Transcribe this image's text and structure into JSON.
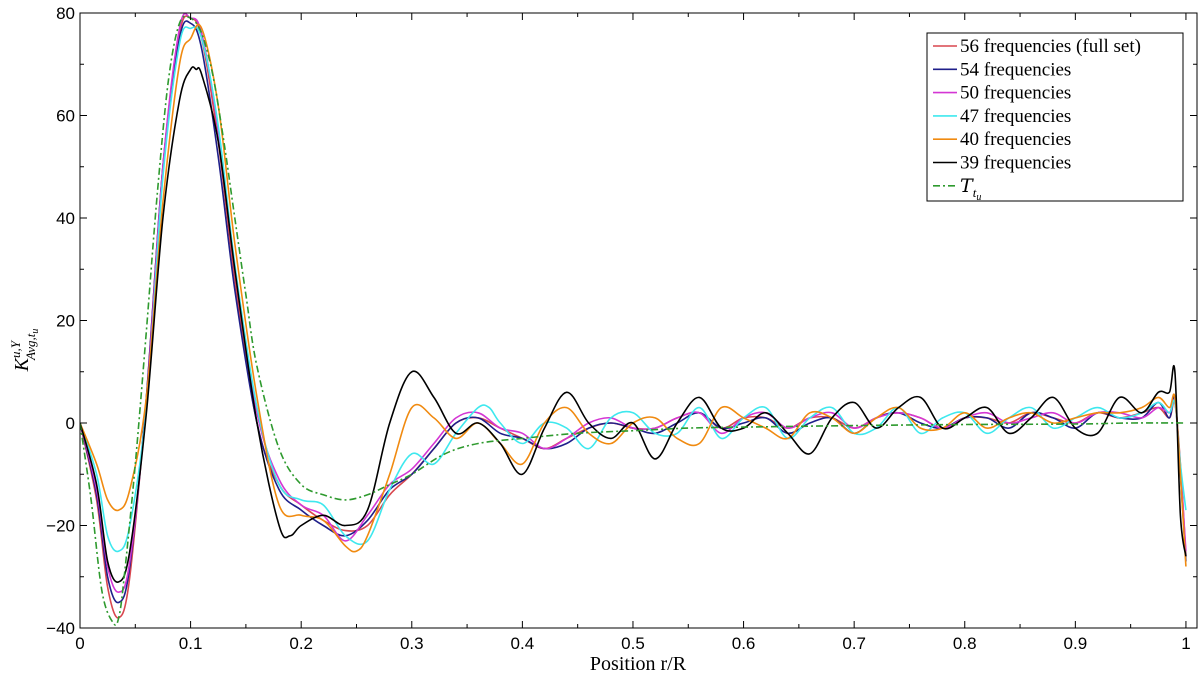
{
  "chart_data": {
    "type": "line",
    "title": "",
    "xlabel": "Position r/R",
    "ylabel_base": "K",
    "ylabel_sup": "u,Y",
    "ylabel_sub": "Avg,t",
    "ylabel_subsub": "u",
    "xlim": [
      0,
      1.01
    ],
    "ylim": [
      -40,
      80
    ],
    "xticks": [
      0,
      0.1,
      0.2,
      0.3,
      0.4,
      0.5,
      0.6,
      0.7,
      0.8,
      0.9,
      1
    ],
    "xtick_labels": [
      "0",
      "0.1",
      "0.2",
      "0.3",
      "0.4",
      "0.5",
      "0.6",
      "0.7",
      "0.8",
      "0.9",
      "1"
    ],
    "yticks": [
      -40,
      -20,
      0,
      20,
      40,
      60,
      80
    ],
    "ytick_labels": [
      "−40",
      "−20",
      "0",
      "20",
      "40",
      "60",
      "80"
    ],
    "grid": false,
    "legend_position": "top-right",
    "series": [
      {
        "name": "56 frequencies (full set)",
        "color": "#d9474f",
        "style": "solid",
        "x": [
          0,
          0.015,
          0.025,
          0.035,
          0.045,
          0.06,
          0.075,
          0.09,
          0.1,
          0.11,
          0.125,
          0.14,
          0.16,
          0.18,
          0.2,
          0.22,
          0.24,
          0.26,
          0.28,
          0.3,
          0.32,
          0.34,
          0.36,
          0.38,
          0.4,
          0.42,
          0.44,
          0.46,
          0.48,
          0.5,
          0.52,
          0.54,
          0.56,
          0.58,
          0.6,
          0.62,
          0.64,
          0.66,
          0.68,
          0.7,
          0.72,
          0.74,
          0.76,
          0.78,
          0.8,
          0.82,
          0.84,
          0.86,
          0.88,
          0.9,
          0.92,
          0.94,
          0.96,
          0.975,
          0.985,
          0.99,
          0.995,
          1.0
        ],
        "y": [
          0,
          -15,
          -32,
          -38,
          -30,
          5,
          50,
          76,
          79,
          75,
          55,
          28,
          0,
          -12,
          -16,
          -19,
          -21,
          -20,
          -14,
          -10,
          -5,
          0,
          1,
          -1,
          -3,
          -5,
          -3,
          -1,
          0,
          -1,
          -1,
          1,
          2,
          -1,
          1,
          1,
          -1,
          1,
          1,
          -1,
          1,
          2,
          1,
          -1,
          1,
          1,
          0,
          2,
          1,
          0,
          2,
          1,
          2,
          3,
          1,
          4,
          -8,
          -26
        ]
      },
      {
        "name": "54 frequencies",
        "color": "#1f1f8a",
        "style": "solid",
        "x": [
          0,
          0.015,
          0.025,
          0.035,
          0.045,
          0.06,
          0.075,
          0.09,
          0.1,
          0.11,
          0.125,
          0.14,
          0.16,
          0.18,
          0.2,
          0.22,
          0.24,
          0.26,
          0.28,
          0.3,
          0.32,
          0.34,
          0.36,
          0.38,
          0.4,
          0.42,
          0.44,
          0.46,
          0.48,
          0.5,
          0.52,
          0.54,
          0.56,
          0.58,
          0.6,
          0.62,
          0.64,
          0.66,
          0.68,
          0.7,
          0.72,
          0.74,
          0.76,
          0.78,
          0.8,
          0.82,
          0.84,
          0.86,
          0.88,
          0.9,
          0.92,
          0.94,
          0.96,
          0.975,
          0.985,
          0.99,
          0.995,
          1.0
        ],
        "y": [
          0,
          -14,
          -30,
          -35,
          -28,
          5,
          50,
          75,
          78,
          73,
          52,
          26,
          0,
          -13,
          -17,
          -20,
          -22,
          -19,
          -13,
          -10,
          -5,
          0,
          1,
          -2,
          -3,
          -5,
          -4,
          -1,
          0,
          -1,
          -2,
          0,
          2,
          -1,
          0,
          1,
          -2,
          0,
          1,
          -2,
          1,
          2,
          0,
          -1,
          1,
          1,
          -1,
          2,
          1,
          -1,
          2,
          1,
          1,
          4,
          1,
          5,
          -10,
          -27
        ]
      },
      {
        "name": "50 frequencies",
        "color": "#d436d4",
        "style": "solid",
        "x": [
          0,
          0.015,
          0.025,
          0.035,
          0.045,
          0.06,
          0.075,
          0.09,
          0.1,
          0.11,
          0.125,
          0.14,
          0.16,
          0.18,
          0.2,
          0.22,
          0.24,
          0.26,
          0.28,
          0.3,
          0.32,
          0.34,
          0.36,
          0.38,
          0.4,
          0.42,
          0.44,
          0.46,
          0.48,
          0.5,
          0.52,
          0.54,
          0.56,
          0.58,
          0.6,
          0.62,
          0.64,
          0.66,
          0.68,
          0.7,
          0.72,
          0.74,
          0.76,
          0.78,
          0.8,
          0.82,
          0.84,
          0.86,
          0.88,
          0.9,
          0.92,
          0.94,
          0.96,
          0.975,
          0.985,
          0.99,
          0.995,
          1.0
        ],
        "y": [
          0,
          -13,
          -28,
          -33,
          -27,
          4,
          50,
          77,
          79,
          76,
          57,
          30,
          2,
          -11,
          -16,
          -18,
          -23,
          -18,
          -12,
          -9,
          -4,
          1,
          2,
          -1,
          -2,
          -5,
          -3,
          0,
          1,
          -1,
          -1,
          1,
          2,
          -2,
          1,
          2,
          -1,
          1,
          2,
          -1,
          1,
          2,
          1,
          -1,
          1,
          2,
          0,
          1,
          2,
          0,
          2,
          2,
          1,
          3,
          2,
          4,
          -9,
          -25
        ]
      },
      {
        "name": "47 frequencies",
        "color": "#3ee8ee",
        "style": "solid",
        "x": [
          0,
          0.015,
          0.025,
          0.035,
          0.045,
          0.06,
          0.075,
          0.09,
          0.1,
          0.11,
          0.125,
          0.14,
          0.16,
          0.18,
          0.2,
          0.22,
          0.24,
          0.26,
          0.28,
          0.3,
          0.32,
          0.34,
          0.36,
          0.37,
          0.38,
          0.4,
          0.42,
          0.44,
          0.46,
          0.48,
          0.5,
          0.52,
          0.54,
          0.56,
          0.58,
          0.6,
          0.62,
          0.64,
          0.66,
          0.68,
          0.7,
          0.72,
          0.74,
          0.76,
          0.78,
          0.8,
          0.82,
          0.84,
          0.86,
          0.88,
          0.9,
          0.92,
          0.94,
          0.96,
          0.975,
          0.985,
          0.99,
          0.995,
          1.0
        ],
        "y": [
          0,
          -10,
          -22,
          -25,
          -20,
          3,
          48,
          74,
          77,
          75,
          58,
          31,
          3,
          -12,
          -15,
          -16,
          -22,
          -23,
          -13,
          -6,
          -8,
          -2,
          3,
          3,
          0,
          -4,
          0,
          -1,
          -5,
          1,
          2,
          -2,
          -2,
          3,
          -3,
          1,
          3,
          -3,
          1,
          3,
          -2,
          -1,
          3,
          -2,
          1,
          2,
          -2,
          1,
          3,
          -1,
          1,
          3,
          1,
          2,
          4,
          2,
          4,
          -8,
          -17
        ]
      },
      {
        "name": "40 frequencies",
        "color": "#f08a10",
        "style": "solid",
        "x": [
          0,
          0.015,
          0.025,
          0.035,
          0.045,
          0.06,
          0.075,
          0.09,
          0.1,
          0.11,
          0.125,
          0.14,
          0.16,
          0.18,
          0.2,
          0.22,
          0.24,
          0.25,
          0.26,
          0.28,
          0.3,
          0.32,
          0.34,
          0.36,
          0.38,
          0.4,
          0.42,
          0.44,
          0.46,
          0.48,
          0.5,
          0.52,
          0.54,
          0.56,
          0.58,
          0.6,
          0.62,
          0.64,
          0.66,
          0.68,
          0.7,
          0.72,
          0.74,
          0.76,
          0.78,
          0.8,
          0.82,
          0.84,
          0.86,
          0.88,
          0.9,
          0.92,
          0.94,
          0.96,
          0.975,
          0.985,
          0.99,
          0.995,
          1.0
        ],
        "y": [
          0,
          -8,
          -15,
          -17,
          -13,
          5,
          43,
          70,
          75,
          77,
          62,
          35,
          5,
          -16,
          -18,
          -19,
          -24,
          -25,
          -22,
          -10,
          3,
          1,
          -3,
          0,
          -4,
          -8,
          0,
          3,
          -2,
          -4,
          0,
          1,
          -3,
          -4,
          3,
          1,
          -1,
          -3,
          2,
          1,
          -2,
          1,
          3,
          -1,
          -1,
          2,
          -1,
          1,
          2,
          0,
          1,
          2,
          2,
          3,
          5,
          3,
          5,
          -10,
          -28
        ]
      },
      {
        "name": "39 frequencies",
        "color": "#000000",
        "style": "solid",
        "x": [
          0,
          0.015,
          0.025,
          0.035,
          0.045,
          0.06,
          0.075,
          0.09,
          0.1,
          0.105,
          0.11,
          0.125,
          0.14,
          0.16,
          0.18,
          0.19,
          0.2,
          0.22,
          0.24,
          0.26,
          0.28,
          0.3,
          0.32,
          0.34,
          0.36,
          0.38,
          0.4,
          0.42,
          0.44,
          0.46,
          0.48,
          0.5,
          0.52,
          0.54,
          0.56,
          0.58,
          0.6,
          0.62,
          0.64,
          0.66,
          0.68,
          0.7,
          0.72,
          0.74,
          0.76,
          0.78,
          0.8,
          0.82,
          0.84,
          0.86,
          0.88,
          0.9,
          0.92,
          0.94,
          0.96,
          0.975,
          0.985,
          0.99,
          0.995,
          1.0
        ],
        "y": [
          0,
          -12,
          -27,
          -31,
          -25,
          2,
          40,
          63,
          69,
          69,
          68,
          55,
          30,
          0,
          -20,
          -22,
          -20,
          -18,
          -20,
          -17,
          0,
          10,
          5,
          -2,
          0,
          -4,
          -10,
          -1,
          6,
          0,
          -3,
          0,
          -7,
          0,
          5,
          -1,
          -1,
          2,
          -2,
          -6,
          1,
          4,
          -1,
          3,
          5,
          -1,
          1,
          3,
          -2,
          1,
          5,
          -1,
          -2,
          5,
          2,
          6,
          6,
          10,
          -18,
          -26
        ]
      },
      {
        "name": "T_{t_u}",
        "color": "#2e9a2e",
        "style": "dashdot",
        "x": [
          0,
          0.01,
          0.02,
          0.03,
          0.035,
          0.04,
          0.05,
          0.06,
          0.07,
          0.08,
          0.09,
          0.1,
          0.11,
          0.12,
          0.13,
          0.14,
          0.15,
          0.16,
          0.18,
          0.2,
          0.22,
          0.24,
          0.26,
          0.28,
          0.3,
          0.33,
          0.36,
          0.4,
          0.45,
          0.5,
          0.55,
          0.6,
          0.7,
          0.8,
          0.9,
          0.95,
          1.0
        ],
        "y": [
          0,
          -15,
          -33,
          -39,
          -38,
          -30,
          -8,
          18,
          45,
          67,
          78,
          79,
          76,
          68,
          55,
          40,
          25,
          11,
          -5,
          -12,
          -14,
          -15,
          -14,
          -12,
          -10,
          -6,
          -4,
          -3,
          -2,
          -1.5,
          -1,
          -0.8,
          -0.5,
          -0.3,
          -0.2,
          0,
          0
        ]
      }
    ],
    "legend_entries": [
      {
        "text": "56 frequencies (full set)",
        "color": "#d9474f",
        "style": "solid"
      },
      {
        "text": "54 frequencies",
        "color": "#1f1f8a",
        "style": "solid"
      },
      {
        "text": "50 frequencies",
        "color": "#d436d4",
        "style": "solid"
      },
      {
        "text": "47 frequencies",
        "color": "#3ee8ee",
        "style": "solid"
      },
      {
        "text": "40 frequencies",
        "color": "#f08a10",
        "style": "solid"
      },
      {
        "text": "39 frequencies",
        "color": "#000000",
        "style": "solid"
      },
      {
        "text": "T",
        "sub": "t",
        "subsub": "u",
        "color": "#2e9a2e",
        "style": "dashdot"
      }
    ]
  }
}
